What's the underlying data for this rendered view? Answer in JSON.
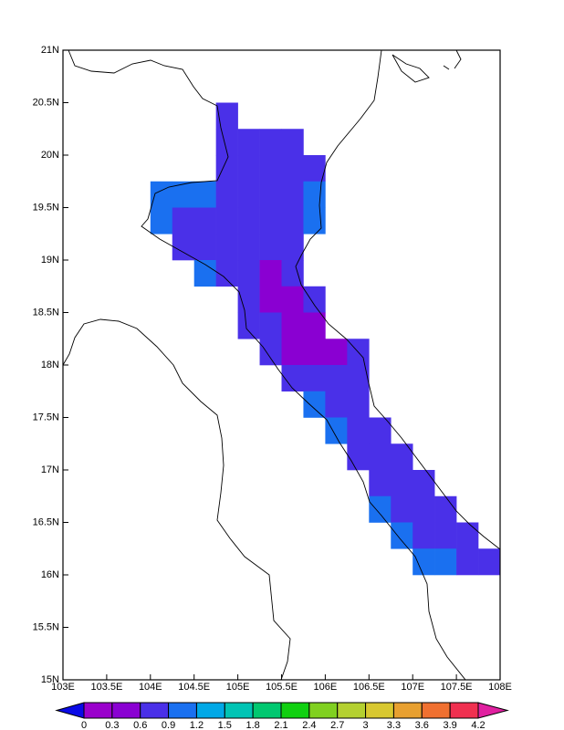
{
  "chart_data": {
    "type": "map",
    "xlim": [
      103,
      108
    ],
    "ylim": [
      15,
      21
    ],
    "xticks": [
      {
        "value": 103,
        "label": "103E"
      },
      {
        "value": 103.5,
        "label": "103.5E"
      },
      {
        "value": 104,
        "label": "104E"
      },
      {
        "value": 104.5,
        "label": "104.5E"
      },
      {
        "value": 105,
        "label": "105E"
      },
      {
        "value": 105.5,
        "label": "105.5E"
      },
      {
        "value": 106,
        "label": "106E"
      },
      {
        "value": 106.5,
        "label": "106.5E"
      },
      {
        "value": 107,
        "label": "107E"
      },
      {
        "value": 107.5,
        "label": "107.5E"
      },
      {
        "value": 108,
        "label": "108E"
      }
    ],
    "yticks": [
      {
        "value": 15,
        "label": "15N"
      },
      {
        "value": 15.5,
        "label": "15.5N"
      },
      {
        "value": 16,
        "label": "16N"
      },
      {
        "value": 16.5,
        "label": "16.5N"
      },
      {
        "value": 17,
        "label": "17N"
      },
      {
        "value": 17.5,
        "label": "17.5N"
      },
      {
        "value": 18,
        "label": "18N"
      },
      {
        "value": 18.5,
        "label": "18.5N"
      },
      {
        "value": 19,
        "label": "19N"
      },
      {
        "value": 19.5,
        "label": "19.5N"
      },
      {
        "value": 20,
        "label": "20N"
      },
      {
        "value": 20.5,
        "label": "20.5N"
      },
      {
        "value": 21,
        "label": "21N"
      }
    ],
    "levels": [
      0,
      0.3,
      0.6,
      0.9,
      1.2,
      1.5,
      1.8,
      2.1,
      2.4,
      2.7,
      3,
      3.3,
      3.6,
      3.9,
      4.2
    ],
    "colors": [
      "#0a0ae6",
      "#9a00cc",
      "#8a00d2",
      "#4a30e8",
      "#1a70f0",
      "#00a8e6",
      "#00c4b4",
      "#00c870",
      "#10d010",
      "#80d020",
      "#b4d030",
      "#d8c830",
      "#e8a030",
      "#f07030",
      "#f03050",
      "#e020a0"
    ],
    "cells": [
      {
        "lon": 104.75,
        "lat": 20.25,
        "value": 0.75
      },
      {
        "lon": 104.75,
        "lat": 20.0,
        "value": 0.75
      },
      {
        "lon": 105,
        "lat": 20.0,
        "value": 0.75
      },
      {
        "lon": 105.25,
        "lat": 20.0,
        "value": 0.75
      },
      {
        "lon": 105.5,
        "lat": 20.0,
        "value": 0.75
      },
      {
        "lon": 104.75,
        "lat": 19.75,
        "value": 0.75
      },
      {
        "lon": 105,
        "lat": 19.75,
        "value": 0.75
      },
      {
        "lon": 105.25,
        "lat": 19.75,
        "value": 0.75
      },
      {
        "lon": 105.5,
        "lat": 19.75,
        "value": 0.75
      },
      {
        "lon": 105.75,
        "lat": 19.75,
        "value": 0.75
      },
      {
        "lon": 104,
        "lat": 19.5,
        "value": 1.05
      },
      {
        "lon": 104.25,
        "lat": 19.5,
        "value": 1.05
      },
      {
        "lon": 104.5,
        "lat": 19.5,
        "value": 1.05
      },
      {
        "lon": 104.75,
        "lat": 19.5,
        "value": 0.75
      },
      {
        "lon": 105,
        "lat": 19.5,
        "value": 0.75
      },
      {
        "lon": 105.25,
        "lat": 19.5,
        "value": 0.75
      },
      {
        "lon": 105.5,
        "lat": 19.5,
        "value": 0.75
      },
      {
        "lon": 105.75,
        "lat": 19.5,
        "value": 1.05
      },
      {
        "lon": 104,
        "lat": 19.25,
        "value": 1.05
      },
      {
        "lon": 104.25,
        "lat": 19.25,
        "value": 0.75
      },
      {
        "lon": 104.5,
        "lat": 19.25,
        "value": 0.75
      },
      {
        "lon": 104.75,
        "lat": 19.25,
        "value": 0.75
      },
      {
        "lon": 105,
        "lat": 19.25,
        "value": 0.75
      },
      {
        "lon": 105.25,
        "lat": 19.25,
        "value": 0.75
      },
      {
        "lon": 105.5,
        "lat": 19.25,
        "value": 0.75
      },
      {
        "lon": 105.75,
        "lat": 19.25,
        "value": 1.05
      },
      {
        "lon": 104.25,
        "lat": 19.0,
        "value": 0.75
      },
      {
        "lon": 104.5,
        "lat": 19.0,
        "value": 0.75
      },
      {
        "lon": 104.75,
        "lat": 19.0,
        "value": 0.75
      },
      {
        "lon": 105,
        "lat": 19.0,
        "value": 0.75
      },
      {
        "lon": 105.25,
        "lat": 19.0,
        "value": 0.75
      },
      {
        "lon": 105.5,
        "lat": 19.0,
        "value": 0.75
      },
      {
        "lon": 104.5,
        "lat": 18.75,
        "value": 1.05
      },
      {
        "lon": 104.75,
        "lat": 18.75,
        "value": 0.75
      },
      {
        "lon": 105,
        "lat": 18.75,
        "value": 0.75
      },
      {
        "lon": 105.25,
        "lat": 18.75,
        "value": 0.45
      },
      {
        "lon": 105.5,
        "lat": 18.75,
        "value": 0.75
      },
      {
        "lon": 105,
        "lat": 18.5,
        "value": 0.75
      },
      {
        "lon": 105.25,
        "lat": 18.5,
        "value": 0.45
      },
      {
        "lon": 105.5,
        "lat": 18.5,
        "value": 0.45
      },
      {
        "lon": 105.75,
        "lat": 18.5,
        "value": 0.75
      },
      {
        "lon": 105,
        "lat": 18.25,
        "value": 0.75
      },
      {
        "lon": 105.25,
        "lat": 18.25,
        "value": 0.75
      },
      {
        "lon": 105.5,
        "lat": 18.25,
        "value": 0.45
      },
      {
        "lon": 105.75,
        "lat": 18.25,
        "value": 0.45
      },
      {
        "lon": 105.25,
        "lat": 18.0,
        "value": 0.75
      },
      {
        "lon": 105.5,
        "lat": 18.0,
        "value": 0.45
      },
      {
        "lon": 105.75,
        "lat": 18.0,
        "value": 0.45
      },
      {
        "lon": 106,
        "lat": 18.0,
        "value": 0.45
      },
      {
        "lon": 106.25,
        "lat": 18.0,
        "value": 0.75
      },
      {
        "lon": 105.5,
        "lat": 17.75,
        "value": 0.75
      },
      {
        "lon": 105.75,
        "lat": 17.75,
        "value": 0.75
      },
      {
        "lon": 106,
        "lat": 17.75,
        "value": 0.75
      },
      {
        "lon": 106.25,
        "lat": 17.75,
        "value": 0.75
      },
      {
        "lon": 105.75,
        "lat": 17.5,
        "value": 1.05
      },
      {
        "lon": 106,
        "lat": 17.5,
        "value": 0.75
      },
      {
        "lon": 106.25,
        "lat": 17.5,
        "value": 0.75
      },
      {
        "lon": 106,
        "lat": 17.25,
        "value": 1.05
      },
      {
        "lon": 106.25,
        "lat": 17.25,
        "value": 0.75
      },
      {
        "lon": 106.5,
        "lat": 17.25,
        "value": 0.75
      },
      {
        "lon": 106.25,
        "lat": 17.0,
        "value": 0.75
      },
      {
        "lon": 106.5,
        "lat": 17.0,
        "value": 0.75
      },
      {
        "lon": 106.75,
        "lat": 17.0,
        "value": 0.75
      },
      {
        "lon": 106.5,
        "lat": 16.75,
        "value": 0.75
      },
      {
        "lon": 106.75,
        "lat": 16.75,
        "value": 0.75
      },
      {
        "lon": 107,
        "lat": 16.75,
        "value": 0.75
      },
      {
        "lon": 106.5,
        "lat": 16.5,
        "value": 1.05
      },
      {
        "lon": 106.75,
        "lat": 16.5,
        "value": 0.75
      },
      {
        "lon": 107,
        "lat": 16.5,
        "value": 0.75
      },
      {
        "lon": 107.25,
        "lat": 16.5,
        "value": 0.75
      },
      {
        "lon": 106.75,
        "lat": 16.25,
        "value": 1.05
      },
      {
        "lon": 107,
        "lat": 16.25,
        "value": 0.75
      },
      {
        "lon": 107.25,
        "lat": 16.25,
        "value": 0.75
      },
      {
        "lon": 107.5,
        "lat": 16.25,
        "value": 0.75
      },
      {
        "lon": 107,
        "lat": 16.0,
        "value": 1.05
      },
      {
        "lon": 107.25,
        "lat": 16.0,
        "value": 1.05
      },
      {
        "lon": 107.5,
        "lat": 16.0,
        "value": 0.75
      },
      {
        "lon": 107.75,
        "lat": 16.0,
        "value": 0.75
      }
    ]
  }
}
